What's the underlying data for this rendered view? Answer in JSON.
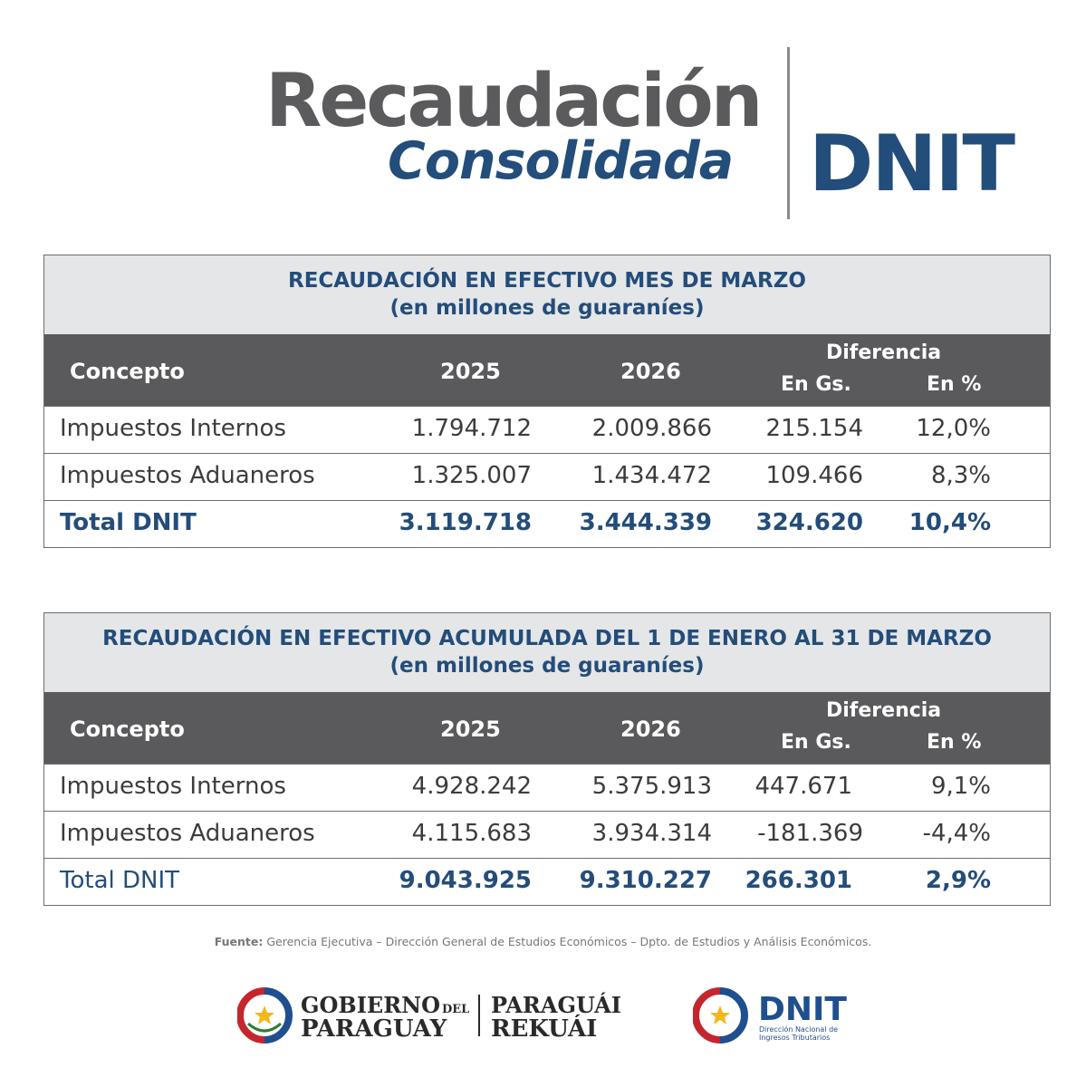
{
  "header": {
    "title_line1": "Recaudación",
    "title_line2": "Consolidada",
    "brand": "DNIT"
  },
  "tables": [
    {
      "title": "RECAUDACIÓN EN  EFECTIVO MES DE MARZO",
      "subtitle": "(en millones de guaraníes)",
      "columns": {
        "concepto": "Concepto",
        "y1": "2025",
        "y2": "2026",
        "diferencia": "Diferencia",
        "gs": "En Gs.",
        "pct": "En %"
      },
      "rows": [
        [
          "Impuestos Internos",
          "1.794.712",
          "2.009.866",
          "215.154",
          "12,0%"
        ],
        [
          "Impuestos Aduaneros",
          "1.325.007",
          "1.434.472",
          "109.466",
          "8,3%"
        ]
      ],
      "total": [
        "Total DNIT",
        "3.119.718",
        "3.444.339",
        "324.620",
        "10,4%"
      ]
    },
    {
      "title": "RECAUDACIÓN EN EFECTIVO ACUMULADA DEL 1 DE ENERO AL 31 DE MARZO",
      "subtitle": "(en millones de guaraníes)",
      "columns": {
        "concepto": "Concepto",
        "y1": "2025",
        "y2": "2026",
        "diferencia": "Diferencia",
        "gs": "En Gs.",
        "pct": "En %"
      },
      "rows": [
        [
          "Impuestos Internos",
          "4.928.242",
          "5.375.913",
          "447.671",
          "9,1%"
        ],
        [
          "Impuestos Aduaneros",
          "4.115.683",
          "3.934.314",
          "-181.369",
          "-4,4%"
        ]
      ],
      "total": [
        "Total DNIT",
        "9.043.925",
        "9.310.227",
        "266.301",
        "2,9%"
      ]
    }
  ],
  "source": {
    "label": "Fuente:",
    "text": "Gerencia Ejecutiva – Dirección General de Estudios Económicos – Dpto. de Estudios y Análisis Económicos."
  },
  "logos": {
    "gob_line1a": "GOBIERNO",
    "gob_line1b": "DEL",
    "gob_line2": "PARAGUAY",
    "slogan_line1": "PARAGUÁI",
    "slogan_line2": "REKUÁI",
    "dnit_name": "DNIT",
    "dnit_sub1": "Dirección Nacional de",
    "dnit_sub2": "Ingresos Tributarios"
  },
  "colors": {
    "navy": "#234d7a",
    "gray_title": "#5b5b5d",
    "header_band": "#5a5a5c",
    "title_band": "#e5e6e8"
  }
}
